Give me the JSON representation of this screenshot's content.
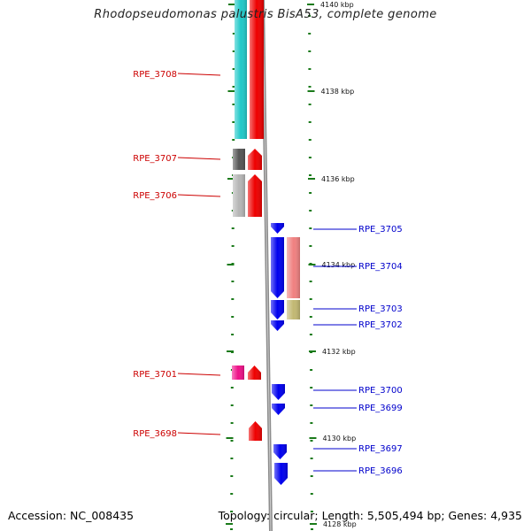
{
  "title": "Rhodopseudomonas palustris BisA53, complete genome",
  "accession": "Accession: NC_008435",
  "topology": "Topology: circular; Length: 5,505,494 bp; Genes: 4,935",
  "colors": {
    "backbone": "#8c8c8c",
    "tick": "#1a7a1a",
    "label_forward": "#cc0000",
    "label_reverse": "#0000cc"
  },
  "ticks": [
    "4140 kbp",
    "4138 kbp",
    "4136 kbp",
    "4134 kbp",
    "4132 kbp",
    "4130 kbp",
    "4128 kbp"
  ],
  "genes": [
    {
      "label": "RPE_3708",
      "strand": "forward",
      "colors": [
        "#1ec8c8",
        "#ee0000"
      ]
    },
    {
      "label": "RPE_3707",
      "strand": "forward",
      "colors": [
        "#555555",
        "#ee0000"
      ]
    },
    {
      "label": "RPE_3706",
      "strand": "forward",
      "colors": [
        "#b5b5b5",
        "#ee0000"
      ]
    },
    {
      "label": "RPE_3705",
      "strand": "reverse",
      "colors": [
        "#0000ee"
      ]
    },
    {
      "label": "RPE_3704",
      "strand": "reverse",
      "colors": [
        "#0000ee",
        "#f08080"
      ]
    },
    {
      "label": "RPE_3703",
      "strand": "reverse",
      "colors": [
        "#0000ee",
        "#c2b872"
      ]
    },
    {
      "label": "RPE_3702",
      "strand": "reverse",
      "colors": [
        "#0000ee"
      ]
    },
    {
      "label": "RPE_3701",
      "strand": "forward",
      "colors": [
        "#ee1188",
        "#ee0000"
      ]
    },
    {
      "label": "RPE_3700",
      "strand": "reverse",
      "colors": [
        "#0000ee"
      ]
    },
    {
      "label": "RPE_3699",
      "strand": "reverse",
      "colors": [
        "#0000ee"
      ]
    },
    {
      "label": "RPE_3698",
      "strand": "forward",
      "colors": [
        "#ee0000"
      ]
    },
    {
      "label": "RPE_3697",
      "strand": "reverse",
      "colors": [
        "#0000ee"
      ]
    },
    {
      "label": "RPE_3696",
      "strand": "reverse",
      "colors": [
        "#0000ee"
      ]
    }
  ]
}
